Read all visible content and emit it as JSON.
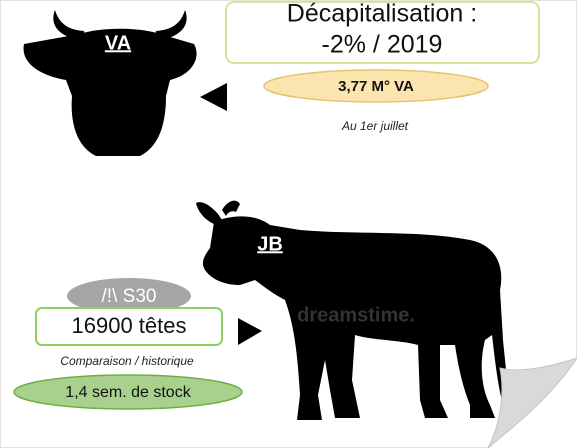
{
  "cow": {
    "label": "VA"
  },
  "headline": {
    "line1": "Décapitalisation :",
    "line2": "-2% / 2019"
  },
  "count_badge": "3,77 M° VA",
  "date_note": "Au 1er juillet",
  "bull": {
    "label": "JB"
  },
  "alert_badge": "/!\\ S30",
  "heads_box": "16900 têtes",
  "comparison_note": "Comparaison / historique",
  "stock_badge": "1,4 sem. de stock",
  "watermark": "dreamstime."
}
